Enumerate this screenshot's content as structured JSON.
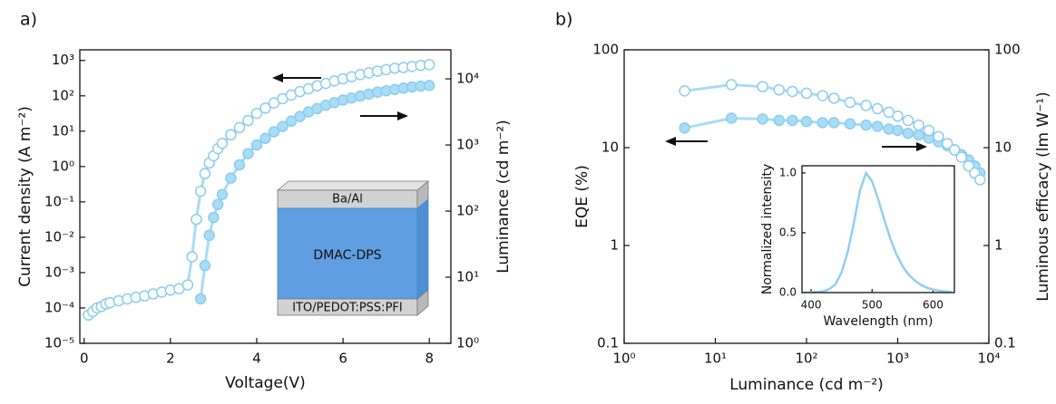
{
  "chart_data": [
    {
      "type": "scatter",
      "panel": "a)",
      "xlabel": "Voltage(V)",
      "ylabel": "Current density (A m⁻²)",
      "y2label": "Luminance (cd m⁻²)",
      "xlim": [
        -0.1,
        8.5
      ],
      "xticks": [
        0,
        2,
        4,
        6,
        8
      ],
      "yscale": "log",
      "ylim": [
        1e-05,
        2000
      ],
      "yticks": [
        {
          "value": 1e-05,
          "label": "10⁻⁵"
        },
        {
          "value": 0.0001,
          "label": "10⁻⁴"
        },
        {
          "value": 0.001,
          "label": "10⁻³"
        },
        {
          "value": 0.01,
          "label": "10⁻²"
        },
        {
          "value": 0.1,
          "label": "10⁻¹"
        },
        {
          "value": 1,
          "label": "10⁰"
        },
        {
          "value": 10,
          "label": "10¹"
        },
        {
          "value": 100,
          "label": "10²"
        },
        {
          "value": 1000,
          "label": "10³"
        }
      ],
      "y2scale": "log",
      "y2lim": [
        1,
        27500
      ],
      "y2ticks": [
        {
          "value": 1,
          "label": "10⁰"
        },
        {
          "value": 10,
          "label": "10¹"
        },
        {
          "value": 100,
          "label": "10²"
        },
        {
          "value": 1000,
          "label": "10³"
        },
        {
          "value": 10000,
          "label": "10⁴"
        }
      ],
      "inset_labels": [
        "Ba/Al",
        "DMAC-DPS",
        "ITO/PEDOT:PSS:PFI"
      ],
      "series": [
        {
          "color": "#a9dcf5",
          "marker": "open",
          "x": [
            0.1,
            0.2,
            0.3,
            0.4,
            0.5,
            0.6,
            0.8,
            1.0,
            1.2,
            1.4,
            1.6,
            1.8,
            2.0,
            2.2,
            2.4,
            2.5,
            2.6,
            2.7,
            2.8,
            2.9,
            3.0,
            3.1,
            3.2,
            3.4,
            3.6,
            3.8,
            4.0,
            4.2,
            4.4,
            4.6,
            4.8,
            5.0,
            5.2,
            5.4,
            5.6,
            5.8,
            6.0,
            6.2,
            6.4,
            6.6,
            6.8,
            7.0,
            7.2,
            7.4,
            7.6,
            7.8,
            8.0
          ],
          "values": [
            6.3e-05,
            7.9e-05,
            0.0001,
            0.00011,
            0.00013,
            0.00014,
            0.00016,
            0.00018,
            0.0002,
            0.00022,
            0.00025,
            0.00028,
            0.00032,
            0.00035,
            0.00045,
            0.0028,
            0.032,
            0.2,
            0.63,
            1.26,
            2,
            3.2,
            4.5,
            7.9,
            12.6,
            20,
            32,
            45,
            63,
            83,
            105,
            132,
            158,
            191,
            224,
            263,
            302,
            347,
            398,
            447,
            501,
            550,
            603,
            631,
            676,
            724,
            759
          ]
        },
        {
          "color": "#a9dcf5",
          "marker": "filled",
          "axis": "y2",
          "x": [
            2.7,
            2.8,
            2.9,
            3.0,
            3.1,
            3.2,
            3.4,
            3.6,
            3.8,
            4.0,
            4.2,
            4.4,
            4.6,
            4.8,
            5.0,
            5.2,
            5.4,
            5.6,
            5.8,
            6.0,
            6.2,
            6.4,
            6.6,
            6.8,
            7.0,
            7.2,
            7.4,
            7.6,
            7.8,
            8.0
          ],
          "values": [
            4.7,
            15,
            43,
            80,
            126,
            178,
            316,
            500,
            740,
            1000,
            1259,
            1585,
            1905,
            2291,
            2692,
            3162,
            3548,
            3981,
            4365,
            4786,
            5129,
            5495,
            5888,
            6310,
            6607,
            6918,
            7244,
            7586,
            7762,
            7943
          ]
        }
      ]
    },
    {
      "type": "scatter",
      "panel": "b)",
      "xlabel": "Luminance (cd m⁻²)",
      "ylabel": "EQE (%)",
      "y2label": "Luminous efficacy (lm W⁻¹)",
      "xscale": "log",
      "xlim": [
        1,
        10000
      ],
      "xticks": [
        {
          "value": 1,
          "label": "10⁰"
        },
        {
          "value": 10,
          "label": "10¹"
        },
        {
          "value": 100,
          "label": "10²"
        },
        {
          "value": 1000,
          "label": "10³"
        },
        {
          "value": 10000,
          "label": "10⁴"
        }
      ],
      "yscale": "log",
      "ylim": [
        0.1,
        100
      ],
      "yticks": [
        0.1,
        1,
        10,
        100
      ],
      "y2scale": "log",
      "y2lim": [
        0.1,
        100
      ],
      "y2ticks": [
        0.1,
        1,
        10,
        100
      ],
      "series": [
        {
          "color": "#a9dcf5",
          "marker": "filled",
          "x": [
            4.6,
            15,
            33,
            50,
            70,
            100,
            150,
            200,
            300,
            450,
            600,
            800,
            1000,
            1300,
            1700,
            2200,
            2800,
            3500,
            4200,
            5000,
            6000,
            7000,
            8000
          ],
          "values": [
            15.9,
            20,
            19.6,
            19,
            19,
            18.5,
            18,
            18,
            17.5,
            17,
            16.5,
            15.5,
            15,
            14,
            13.5,
            12.5,
            11.5,
            10.5,
            9.5,
            8.5,
            7.5,
            6.5,
            5.5
          ]
        },
        {
          "color": "#a9dcf5",
          "marker": "open",
          "axis": "y2",
          "x": [
            4.6,
            15,
            33,
            50,
            70,
            100,
            150,
            200,
            300,
            450,
            600,
            800,
            1000,
            1300,
            1700,
            2200,
            2800,
            3500,
            4200,
            5000,
            6000,
            7000,
            8000
          ],
          "values": [
            38,
            44,
            42,
            39,
            37.5,
            36,
            34,
            32,
            29,
            27,
            25,
            23,
            21,
            19,
            17,
            15,
            13,
            11,
            9.5,
            8,
            6.5,
            5.5,
            4.7
          ]
        }
      ]
    },
    {
      "type": "line",
      "xlabel": "Wavelength (nm)",
      "ylabel": "Normalized intensity",
      "xlim": [
        385,
        635
      ],
      "xticks": [
        400,
        500,
        600
      ],
      "ylim": [
        0,
        1.06
      ],
      "yticks": [
        {
          "value": 0,
          "label": "0.0"
        },
        {
          "value": 0.5,
          "label": "0.5"
        },
        {
          "value": 1,
          "label": "1.0"
        }
      ],
      "series": [
        {
          "color": "#8fd0f2",
          "x": [
            390,
            400,
            410,
            420,
            430,
            440,
            450,
            460,
            470,
            480,
            490,
            500,
            510,
            520,
            530,
            540,
            550,
            560,
            570,
            580,
            590,
            600,
            610,
            620,
            630
          ],
          "values": [
            0,
            0.002,
            0.005,
            0.01,
            0.03,
            0.07,
            0.17,
            0.34,
            0.58,
            0.85,
            1.0,
            0.93,
            0.78,
            0.61,
            0.45,
            0.32,
            0.22,
            0.15,
            0.1,
            0.065,
            0.04,
            0.025,
            0.015,
            0.01,
            0.006
          ]
        }
      ]
    }
  ]
}
